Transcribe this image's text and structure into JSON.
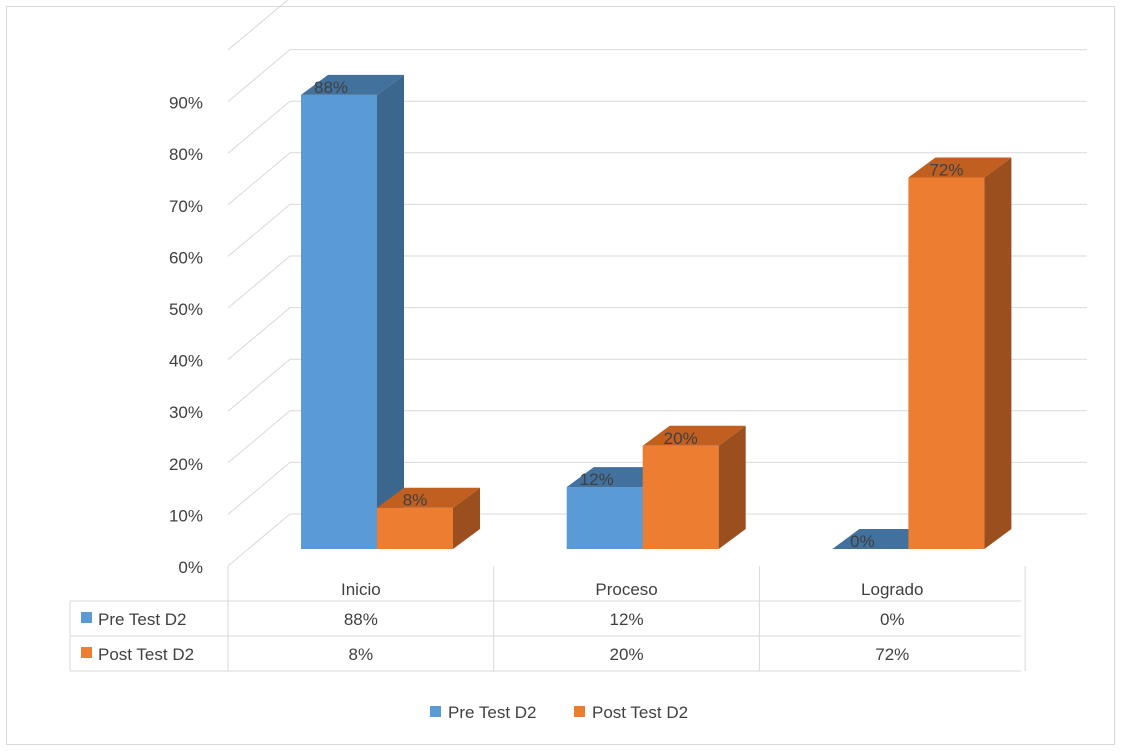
{
  "chart_data": {
    "type": "bar",
    "categories": [
      "Inicio",
      "Proceso",
      "Logrado"
    ],
    "series": [
      {
        "name": "Pre Test D2",
        "values": [
          88,
          12,
          0
        ],
        "labels": [
          "88%",
          "12%",
          "0%"
        ],
        "color": "#5b9bd5"
      },
      {
        "name": "Post Test D2",
        "values": [
          8,
          20,
          72
        ],
        "labels": [
          "8%",
          "20%",
          "72%"
        ],
        "color": "#ed7d31"
      }
    ],
    "ylim": [
      0,
      90
    ],
    "yticks": [
      "0%",
      "10%",
      "20%",
      "30%",
      "40%",
      "50%",
      "60%",
      "70%",
      "80%",
      "90%"
    ],
    "grid": true,
    "three_d": true,
    "data_table": true,
    "legend_position": "bottom",
    "colors": {
      "pre_side": "#3b668d",
      "post_side": "#9b4f1f",
      "pre_top": "#41719c",
      "post_top": "#c05f1f",
      "grid": "#d9d9d9",
      "text": "#404040"
    }
  }
}
